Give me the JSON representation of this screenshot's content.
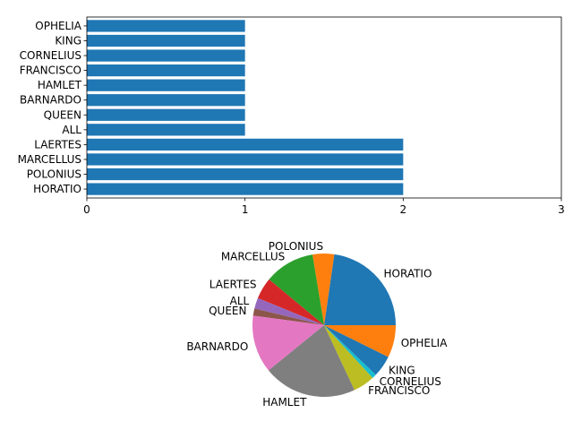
{
  "chart_data": [
    {
      "type": "bar",
      "orientation": "horizontal",
      "title": "",
      "xlabel": "",
      "ylabel": "",
      "categories": [
        "HORATIO",
        "POLONIUS",
        "MARCELLUS",
        "LAERTES",
        "ALL",
        "QUEEN",
        "BARNARDO",
        "HAMLET",
        "FRANCISCO",
        "CORNELIUS",
        "KING",
        "OPHELIA"
      ],
      "values": [
        2,
        2,
        2,
        2,
        1,
        1,
        1,
        1,
        1,
        1,
        1,
        1
      ],
      "xlim": [
        0,
        3
      ],
      "xticks": [
        "0",
        "1",
        "2",
        "3"
      ],
      "grid": false,
      "bar_color": "#1f77b4"
    },
    {
      "type": "pie",
      "title": "",
      "start_angle_deg": 0,
      "direction": "counterclockwise",
      "slices": [
        {
          "label": "HORATIO",
          "value": 14,
          "color": "#1f77b4"
        },
        {
          "label": "POLONIUS",
          "value": 3,
          "color": "#ff7f0e"
        },
        {
          "label": "MARCELLUS",
          "value": 7,
          "color": "#2ca02c"
        },
        {
          "label": "LAERTES",
          "value": 3,
          "color": "#d62728"
        },
        {
          "label": "ALL",
          "value": 1.5,
          "color": "#9467bd"
        },
        {
          "label": "QUEEN",
          "value": 1,
          "color": "#8c564b"
        },
        {
          "label": "BARNARDO",
          "value": 8,
          "color": "#e377c2"
        },
        {
          "label": "HAMLET",
          "value": 13,
          "color": "#7f7f7f"
        },
        {
          "label": "FRANCISCO",
          "value": 3,
          "color": "#bcbd22"
        },
        {
          "label": "CORNELIUS",
          "value": 0.6,
          "color": "#17becf"
        },
        {
          "label": "KING",
          "value": 3,
          "color": "#1f77b4"
        },
        {
          "label": "OPHELIA",
          "value": 4.5,
          "color": "#ff7f0e"
        }
      ]
    }
  ]
}
